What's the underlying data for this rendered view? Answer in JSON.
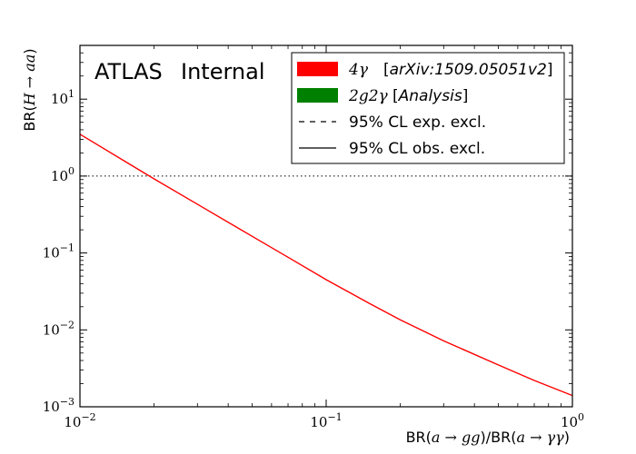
{
  "chart_data": {
    "type": "line",
    "x_scale": "log",
    "y_scale": "log",
    "xlim": [
      0.01,
      1
    ],
    "ylim": [
      0.001,
      50
    ],
    "xlabel": {
      "pre": "BR(",
      "math1": "a → gg",
      "mid": ")/BR(",
      "math2": "a → γγ",
      "post": ")"
    },
    "ylabel": {
      "pre": "BR(",
      "math": "H → aa",
      "post": ")"
    },
    "x_ticks": [
      {
        "value": 0.01,
        "base": "10",
        "exp": "−2"
      },
      {
        "value": 0.1,
        "base": "10",
        "exp": "−1"
      },
      {
        "value": 1,
        "base": "10",
        "exp": "0"
      }
    ],
    "y_ticks": [
      {
        "value": 0.001,
        "base": "10",
        "exp": "−3"
      },
      {
        "value": 0.01,
        "base": "10",
        "exp": "−2"
      },
      {
        "value": 0.1,
        "base": "10",
        "exp": "−1"
      },
      {
        "value": 1,
        "base": "10",
        "exp": "0"
      },
      {
        "value": 10,
        "base": "10",
        "exp": "1"
      }
    ],
    "annotation": {
      "atlas": "ATLAS",
      "internal": "Internal"
    },
    "reference_line": {
      "y": 1,
      "style": "dotted",
      "color": "#000000"
    },
    "series": [
      {
        "color": "#ff0000",
        "x": [
          0.01,
          0.015,
          0.02,
          0.03,
          0.05,
          0.07,
          0.1,
          0.15,
          0.2,
          0.3,
          0.5,
          0.7,
          1.0
        ],
        "y": [
          3.5,
          1.6,
          0.92,
          0.43,
          0.165,
          0.088,
          0.045,
          0.022,
          0.0135,
          0.0072,
          0.0035,
          0.0022,
          0.0014
        ]
      }
    ],
    "legend": {
      "placement": "top-right",
      "entries": [
        {
          "style": "patch",
          "color": "#ff0000",
          "math": "4γ",
          "text": "[arXiv:1509.05051v2]",
          "text_style": "italic-bracket"
        },
        {
          "style": "patch",
          "color": "#008000",
          "math": "2g2γ",
          "text": "[Analysis]",
          "text_style": "italic-bracket"
        },
        {
          "style": "dashed",
          "color": "#000000",
          "math": "",
          "text": "95% CL exp. excl.",
          "text_style": "plain"
        },
        {
          "style": "solid",
          "color": "#000000",
          "math": "",
          "text": "95% CL obs. excl.",
          "text_style": "plain"
        }
      ]
    }
  }
}
